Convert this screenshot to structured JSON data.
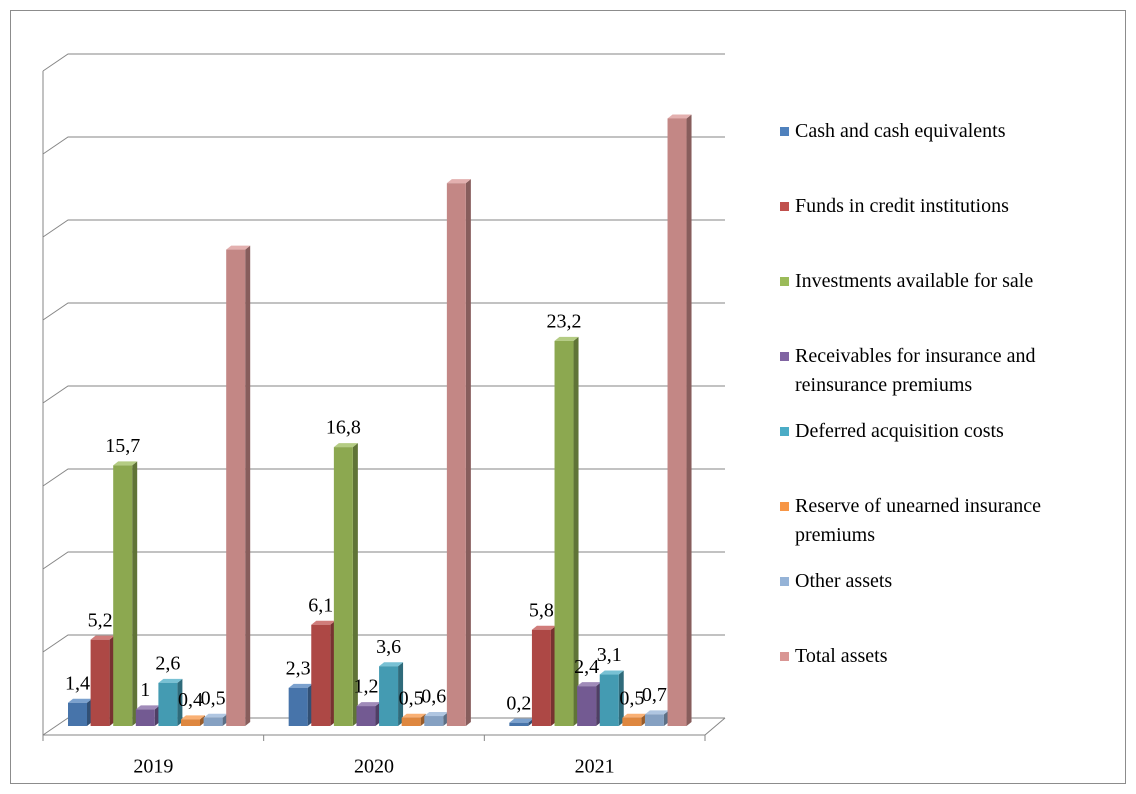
{
  "chart_data": {
    "type": "bar3d",
    "categories": [
      "2019",
      "2020",
      "2021"
    ],
    "series": [
      {
        "name": "Cash and cash equivalents",
        "color": "#4f81bd",
        "values": [
          1.4,
          2.3,
          0.2
        ],
        "value_labels": [
          "1,4",
          "2,3",
          "0,2"
        ]
      },
      {
        "name": "Funds in credit institutions",
        "color": "#c0504d",
        "values": [
          5.2,
          6.1,
          5.8
        ],
        "value_labels": [
          "5,2",
          "6,1",
          "5,8"
        ]
      },
      {
        "name": "Investments available for sale",
        "color": "#9bbb59",
        "values": [
          15.7,
          16.8,
          23.2
        ],
        "value_labels": [
          "15,7",
          "16,8",
          "23,2"
        ]
      },
      {
        "name": "Receivables for insurance and reinsurance premiums",
        "color": "#8064a2",
        "values": [
          1,
          1.2,
          2.4
        ],
        "value_labels": [
          "1",
          "1,2",
          "2,4"
        ]
      },
      {
        "name": "Deferred acquisition costs",
        "color": "#4bacc6",
        "values": [
          2.6,
          3.6,
          3.1
        ],
        "value_labels": [
          "2,6",
          "3,6",
          "3,1"
        ]
      },
      {
        "name": "Reserve of unearned insurance premiums",
        "color": "#f79646",
        "values": [
          0.4,
          0.5,
          0.5
        ],
        "value_labels": [
          "0,4",
          "0,5",
          "0,5"
        ]
      },
      {
        "name": "Other assets",
        "color": "#95b3d7",
        "values": [
          0.5,
          0.6,
          0.7
        ],
        "value_labels": [
          "0,5",
          "0,6",
          "0,7"
        ]
      },
      {
        "name": "Total assets",
        "color": "#d99694",
        "values": [
          28.7,
          32.7,
          36.6
        ]
      }
    ],
    "ylim": [
      0,
      40
    ],
    "yticks": [
      0,
      5,
      10,
      15,
      20,
      25,
      30,
      35,
      40
    ],
    "grid": true,
    "show_ytick_labels": false,
    "legend": "right"
  }
}
